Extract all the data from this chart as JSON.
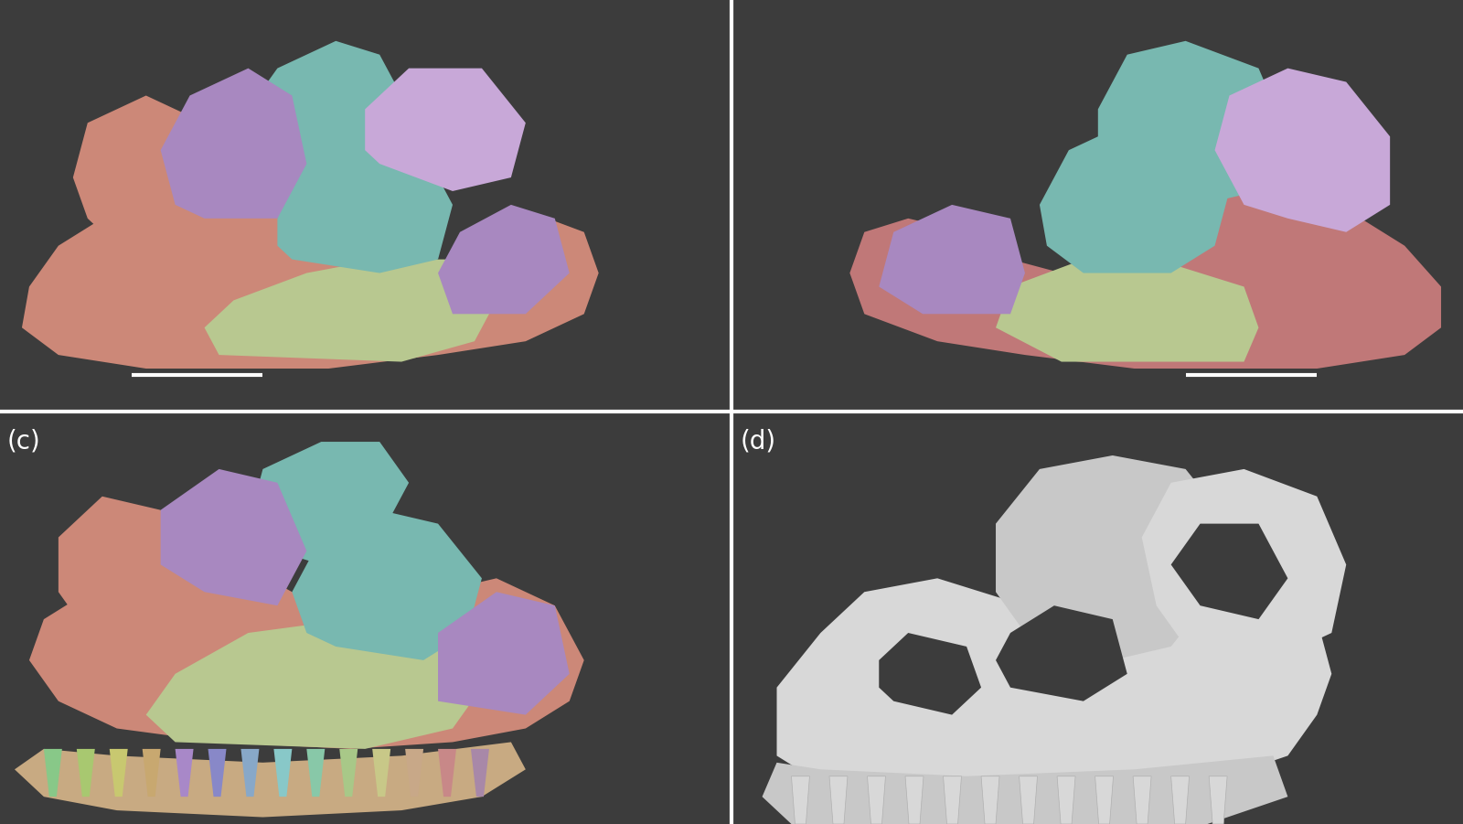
{
  "background_color": "#3c3c3c",
  "separator_color": "#ffffff",
  "separator_thickness": 3,
  "label_color": "#ffffff",
  "label_fontsize": 20,
  "labels": {
    "bottom_left": "(c)",
    "bottom_right": "(d)"
  },
  "figsize": [
    16.0,
    9.01
  ],
  "dpi": 100,
  "scale_bar_color": "#ffffff",
  "scale_bar_linewidth": 3,
  "panel_bg": "#3c3c3c",
  "colors": {
    "pink": "#cc8878",
    "pink2": "#c07878",
    "yellow_green": "#b8c890",
    "teal": "#78b8b0",
    "purple": "#a888c0",
    "lavender": "#c8a8d8",
    "tan": "#c8aa82",
    "white": "#d8d8d8",
    "light_gray": "#c0c0c0",
    "dark_gray": "#a0a0a0"
  }
}
